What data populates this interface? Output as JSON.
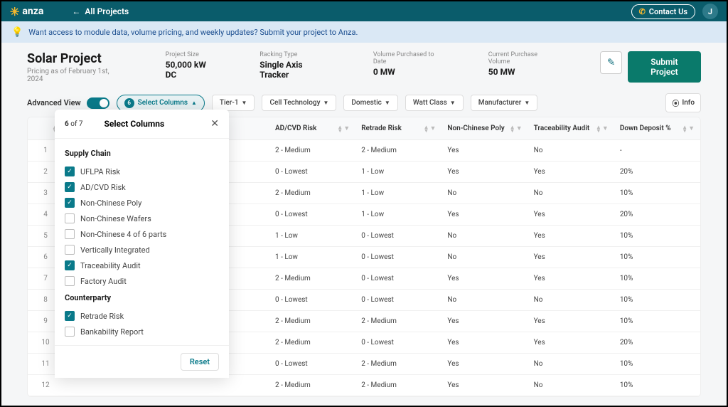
{
  "brand": "anza",
  "back_link": "All Projects",
  "contact": "Contact Us",
  "avatar_initial": "J",
  "banner": "Want access to module data, volume pricing, and weekly updates? Submit your project to Anza.",
  "project": {
    "title": "Solar Project",
    "subtitle": "Pricing as of February 1st, 2024",
    "meta": [
      {
        "label": "Project Size",
        "value": "50,000 kW DC"
      },
      {
        "label": "Racking Type",
        "value": "Single Axis Tracker"
      },
      {
        "label": "Volume Purchased to Date",
        "value": "0 MW"
      },
      {
        "label": "Current Purchase Volume",
        "value": "50 MW"
      }
    ],
    "submit": "Submit Project"
  },
  "controls": {
    "advanced_view": "Advanced View",
    "select_columns": "Select Columns",
    "selected_count": "6",
    "filters": [
      "Tier-1",
      "Cell Technology",
      "Domestic",
      "Watt Class",
      "Manufacturer"
    ],
    "info": "Info"
  },
  "columns": [
    "AD/CVD Risk",
    "Retrade Risk",
    "Non-Chinese Poly",
    "Traceability Audit",
    "Down Deposit %"
  ],
  "rows": [
    {
      "n": "1",
      "c": [
        "2 - Medium",
        "2 - Medium",
        "Yes",
        "No",
        "-"
      ]
    },
    {
      "n": "2",
      "c": [
        "0 - Lowest",
        "1 - Low",
        "Yes",
        "Yes",
        "20%"
      ]
    },
    {
      "n": "3",
      "c": [
        "2 - Medium",
        "1 - Low",
        "No",
        "No",
        "10%"
      ]
    },
    {
      "n": "4",
      "c": [
        "0 - Lowest",
        "1 - Low",
        "Yes",
        "Yes",
        "20%"
      ]
    },
    {
      "n": "5",
      "c": [
        "1 - Low",
        "0 - Lowest",
        "No",
        "Yes",
        "10%"
      ]
    },
    {
      "n": "6",
      "c": [
        "1 - Low",
        "0 - Lowest",
        "No",
        "Yes",
        "10%"
      ]
    },
    {
      "n": "7",
      "c": [
        "2 - Medium",
        "0 - Lowest",
        "Yes",
        "Yes",
        "10%"
      ]
    },
    {
      "n": "8",
      "c": [
        "0 - Lowest",
        "0 - Lowest",
        "No",
        "No",
        "10%"
      ]
    },
    {
      "n": "9",
      "c": [
        "2 - Medium",
        "2 - Medium",
        "Yes",
        "Yes",
        "10%"
      ]
    },
    {
      "n": "10",
      "c": [
        "2 - Medium",
        "0 - Lowest",
        "Yes",
        "Yes",
        "20%"
      ]
    },
    {
      "n": "11",
      "c": [
        "0 - Lowest",
        "2 - Medium",
        "Yes",
        "No",
        "10%"
      ]
    },
    {
      "n": "12",
      "c": [
        "2 - Medium",
        "2 - Medium",
        "Yes",
        "No",
        "10%"
      ]
    }
  ],
  "popover": {
    "count_current": "6",
    "count_total": "of 7",
    "title": "Select Columns",
    "groups": [
      {
        "label": "Supply Chain",
        "items": [
          {
            "label": "UFLPA Risk",
            "checked": true
          },
          {
            "label": "AD/CVD Risk",
            "checked": true
          },
          {
            "label": "Non-Chinese Poly",
            "checked": true
          },
          {
            "label": "Non-Chinese Wafers",
            "checked": false
          },
          {
            "label": "Non-Chinese 4 of 6 parts",
            "checked": false
          },
          {
            "label": "Vertically Integrated",
            "checked": false
          },
          {
            "label": "Traceability Audit",
            "checked": true
          },
          {
            "label": "Factory Audit",
            "checked": false
          }
        ]
      },
      {
        "label": "Counterparty",
        "items": [
          {
            "label": "Retrade Risk",
            "checked": true
          },
          {
            "label": "Bankability Report",
            "checked": false
          }
        ]
      }
    ],
    "reset": "Reset"
  }
}
